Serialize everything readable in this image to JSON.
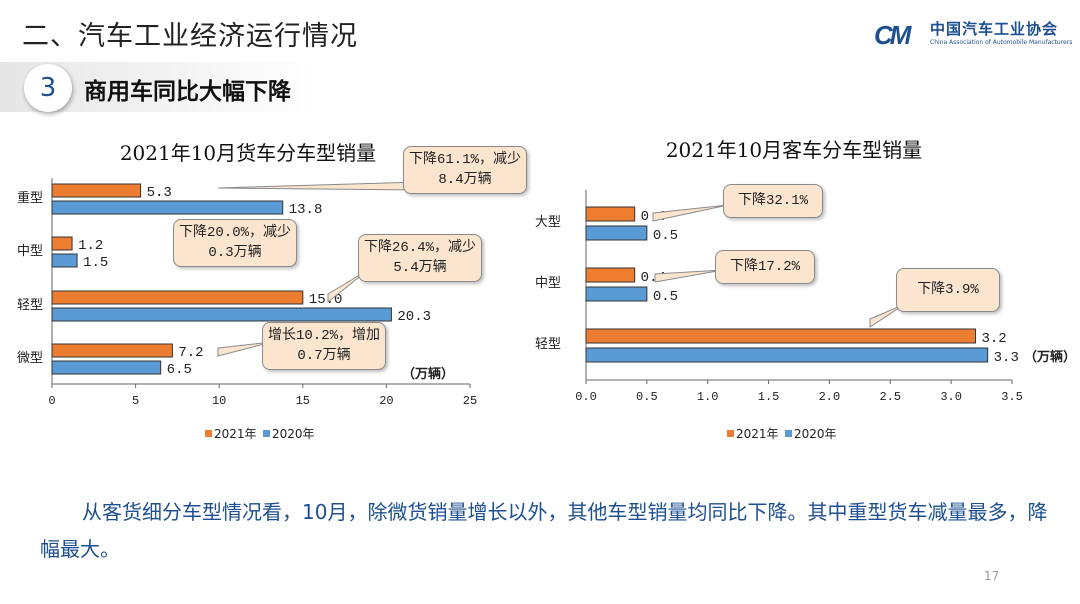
{
  "header": {
    "title": "二、汽车工业经济运行情况",
    "logo_cn": "中国汽车工业协会",
    "logo_en": "China Association of Automobile Manufacturers",
    "logo_mark": "CM"
  },
  "section": {
    "number": "3",
    "title": "商用车同比大幅下降"
  },
  "colors": {
    "y2021": "#ed7d31",
    "y2020": "#5b9bd5",
    "accent": "#1d4f91"
  },
  "chart_data": [
    {
      "type": "bar",
      "orientation": "horizontal",
      "title": "2021年10月货车分车型销量",
      "categories": [
        "重型",
        "中型",
        "轻型",
        "微型"
      ],
      "series": [
        {
          "name": "2021年",
          "values": [
            5.3,
            1.2,
            15.0,
            7.2
          ],
          "labels": [
            "5.3",
            "1.2",
            "15.0",
            "7.2"
          ]
        },
        {
          "name": "2020年",
          "values": [
            13.8,
            1.5,
            20.3,
            6.5
          ],
          "labels": [
            "13.8",
            "1.5",
            "20.3",
            "6.5"
          ]
        }
      ],
      "xlim": [
        0,
        25
      ],
      "xticks": [
        "0",
        "5",
        "10",
        "15",
        "20",
        "25"
      ],
      "unit": "（万辆）",
      "legend": "bottom",
      "annotations": [
        "下降61.1%，减少8.4万辆",
        "下降20.0%，减少0.3万辆",
        "下降26.4%，减少5.4万辆",
        "增长10.2%，增加0.7万辆"
      ]
    },
    {
      "type": "bar",
      "orientation": "horizontal",
      "title": "2021年10月客车分车型销量",
      "categories": [
        "大型",
        "中型",
        "轻型"
      ],
      "series": [
        {
          "name": "2021年",
          "values": [
            0.4,
            0.4,
            3.2
          ],
          "labels": [
            "0.4",
            "0.4",
            "3.2"
          ]
        },
        {
          "name": "2020年",
          "values": [
            0.5,
            0.5,
            3.3
          ],
          "labels": [
            "0.5",
            "0.5",
            "3.3"
          ]
        }
      ],
      "xlim": [
        0,
        3.5
      ],
      "xticks": [
        "0.0",
        "0.5",
        "1.0",
        "1.5",
        "2.0",
        "2.5",
        "3.0",
        "3.5"
      ],
      "unit": "（万辆）",
      "legend": "bottom",
      "annotations": [
        "下降32.1%",
        "下降17.2%",
        "下降3.9%"
      ]
    }
  ],
  "summary": "从客货细分车型情况看，10月，除微货销量增长以外，其他车型销量均同比下降。其中重型货车减量最多，降幅最大。",
  "page_number": "17"
}
